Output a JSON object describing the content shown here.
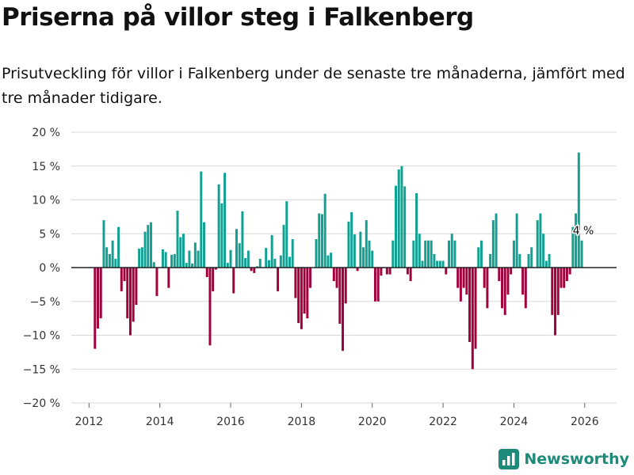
{
  "header": {
    "title": "Priserna på villor steg i Falkenberg",
    "subtitle": "Prisutveckling för villor i Falkenberg under de senaste tre månaderna, jämfört med tre månader tidigare."
  },
  "brand": {
    "name": "Newsworthy",
    "color": "#1e8a79"
  },
  "colors": {
    "positive": "#12a092",
    "negative": "#a0003c",
    "grid": "#d8d8d8",
    "zero": "#222222"
  },
  "chart_data": {
    "type": "bar",
    "title": "Priserna på villor steg i Falkenberg",
    "xlabel": "",
    "ylabel": "",
    "xlim": [
      2011.5,
      2026.9
    ],
    "ylim": [
      -20,
      20
    ],
    "yticks": [
      -20,
      -15,
      -10,
      -5,
      0,
      5,
      10,
      15,
      20
    ],
    "ytick_labels": [
      "−20 %",
      "−15 %",
      "−10 %",
      "−5 %",
      "0 %",
      "5 %",
      "10 %",
      "15 %",
      "20 %"
    ],
    "xticks": [
      2012,
      2014,
      2016,
      2018,
      2020,
      2022,
      2024,
      2026
    ],
    "xtick_labels": [
      "2012",
      "2014",
      "2016",
      "2018",
      "2020",
      "2022",
      "2024",
      "2026"
    ],
    "series_start": 2012.0,
    "step": 0.08333,
    "values": [
      0,
      0,
      -12,
      -9,
      -7.5,
      7,
      3,
      2,
      4,
      1.3,
      6,
      -3.5,
      -2,
      -7.5,
      -10,
      -8,
      -5.5,
      2.8,
      3,
      5.3,
      6.3,
      6.7,
      0.8,
      -4.2,
      0,
      2.7,
      2.3,
      -3,
      1.9,
      2,
      8.4,
      4.5,
      5,
      0.7,
      2.5,
      0.6,
      3.7,
      2.5,
      14.2,
      6.7,
      -1.4,
      -11.5,
      -3.5,
      -0.3,
      12.3,
      9.5,
      14,
      0.7,
      2.6,
      -3.8,
      5.7,
      3.6,
      8.3,
      1.4,
      2.5,
      -0.5,
      -0.8,
      0.2,
      1.3,
      0,
      2.9,
      1.1,
      4.8,
      1.3,
      -3.5,
      1.8,
      6.3,
      9.8,
      1.6,
      4.2,
      -4.5,
      -8.2,
      -9.1,
      -6.8,
      -7.5,
      -3,
      0,
      4.2,
      8,
      7.9,
      10.9,
      1.8,
      2.2,
      -2,
      -3,
      -8.3,
      -12.3,
      -5.3,
      6.8,
      8.2,
      4.9,
      -0.5,
      5.3,
      3,
      7,
      4,
      2.5,
      -5,
      -5,
      -1.2,
      0,
      -1,
      -1,
      4,
      12.1,
      14.5,
      15,
      12,
      -1,
      -2,
      4,
      11,
      5,
      1,
      4,
      4,
      4,
      2,
      1,
      1,
      1,
      -1,
      4,
      5,
      4,
      -3,
      -5,
      -3,
      -4,
      -11,
      -15,
      -12,
      3,
      4,
      -3,
      -6,
      2,
      7,
      8,
      -2,
      -6,
      -7,
      -4,
      -1,
      4,
      8,
      2,
      -4,
      -6,
      2,
      3,
      0,
      7,
      8,
      5,
      1,
      2,
      -7,
      -10,
      -7,
      -3,
      -3,
      -2,
      -1,
      6,
      8,
      17,
      4
    ],
    "annotation": {
      "text": "4 %",
      "value": 4,
      "index": 167
    }
  }
}
